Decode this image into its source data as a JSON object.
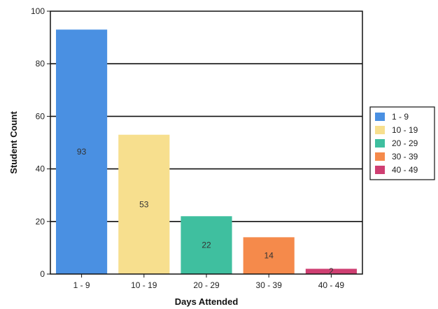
{
  "chart_data": {
    "type": "bar",
    "title": "",
    "xlabel": "Days Attended",
    "ylabel": "Student Count",
    "ylim": [
      0,
      100
    ],
    "y_ticks": [
      0,
      20,
      40,
      60,
      80,
      100
    ],
    "grid": true,
    "legend_position": "right",
    "categories": [
      "1 - 9",
      "10 - 19",
      "20 - 29",
      "30 - 39",
      "40 - 49"
    ],
    "values": [
      93,
      53,
      22,
      14,
      2
    ],
    "colors": [
      "#4a90e2",
      "#f7df8e",
      "#3fbf9f",
      "#f58a4b",
      "#cf3f72"
    ]
  }
}
